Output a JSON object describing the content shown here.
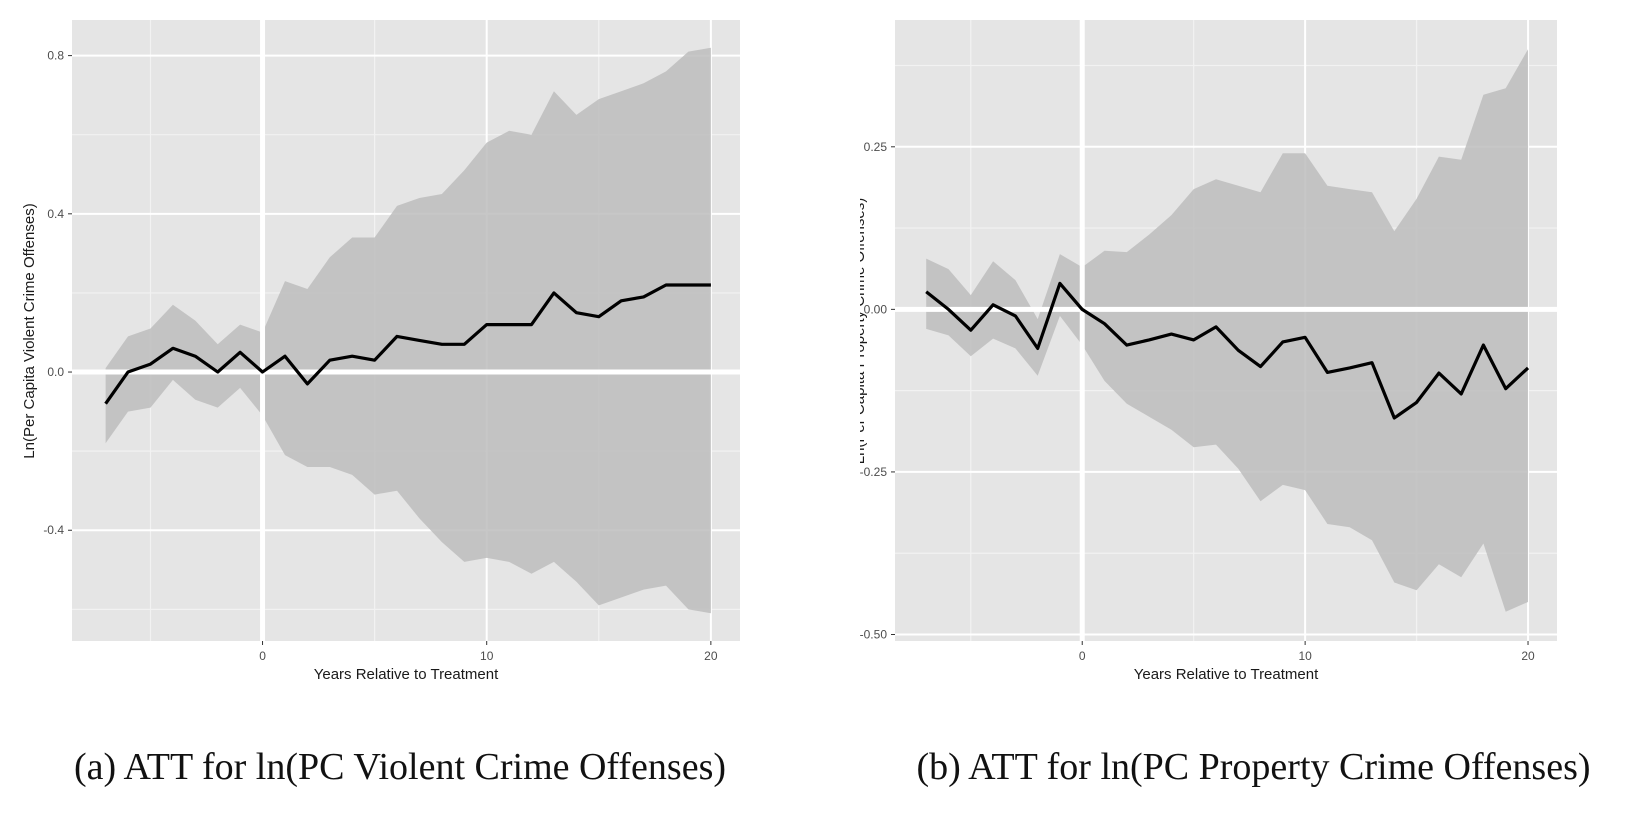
{
  "chart_data": [
    {
      "type": "line",
      "title": "",
      "caption": "(a) ATT for ln(PC Violent Crime Offenses)",
      "xlabel": "Years Relative to Treatment",
      "ylabel": "Ln(Per Capita Violent Crime Offenses)",
      "xlim": [
        -8.5,
        21.3
      ],
      "ylim": [
        -0.68,
        0.89
      ],
      "xticks": [
        0,
        10,
        20
      ],
      "xtick_labels": [
        "0",
        "10",
        "20"
      ],
      "yticks": [
        -0.4,
        0.0,
        0.4,
        0.8
      ],
      "ytick_labels": [
        "-0.4",
        "0.0",
        "0.4",
        "0.8"
      ],
      "reference_lines": {
        "x": 0,
        "y": 0
      },
      "grid": true,
      "x": [
        -7,
        -6,
        -5,
        -4,
        -3,
        -2,
        -1,
        0,
        1,
        2,
        3,
        4,
        5,
        6,
        7,
        8,
        9,
        10,
        11,
        12,
        13,
        14,
        15,
        16,
        17,
        18,
        19,
        20
      ],
      "series": [
        {
          "values": [
            -0.08,
            0.0,
            0.02,
            0.06,
            0.04,
            0.0,
            0.05,
            0.0,
            0.04,
            -0.03,
            0.03,
            0.04,
            0.03,
            0.09,
            0.08,
            0.07,
            0.07,
            0.12,
            0.12,
            0.12,
            0.2,
            0.15,
            0.14,
            0.18,
            0.19,
            0.22,
            0.22,
            0.22
          ]
        }
      ],
      "ribbon": {
        "upper": [
          0.01,
          0.09,
          0.11,
          0.17,
          0.13,
          0.07,
          0.12,
          0.1,
          0.23,
          0.21,
          0.29,
          0.34,
          0.34,
          0.42,
          0.44,
          0.45,
          0.51,
          0.58,
          0.61,
          0.6,
          0.71,
          0.65,
          0.69,
          0.71,
          0.73,
          0.76,
          0.81,
          0.82
        ],
        "lower": [
          -0.18,
          -0.1,
          -0.09,
          -0.02,
          -0.07,
          -0.09,
          -0.04,
          -0.11,
          -0.21,
          -0.24,
          -0.24,
          -0.26,
          -0.31,
          -0.3,
          -0.37,
          -0.43,
          -0.48,
          -0.47,
          -0.48,
          -0.51,
          -0.48,
          -0.53,
          -0.59,
          -0.57,
          -0.55,
          -0.54,
          -0.6,
          -0.61
        ]
      }
    },
    {
      "type": "line",
      "title": "",
      "caption": "(b) ATT for ln(PC Property Crime Offenses)",
      "xlabel": "Years Relative to Treatment",
      "ylabel": "Ln(Per Capita Property Crime Offenses)",
      "xlim": [
        -8.4,
        21.3
      ],
      "ylim": [
        -0.51,
        0.445
      ],
      "xticks": [
        0,
        10,
        20
      ],
      "xtick_labels": [
        "0",
        "10",
        "20"
      ],
      "yticks": [
        -0.5,
        -0.25,
        0.0,
        0.25
      ],
      "ytick_labels": [
        "-0.50",
        "-0.25",
        "0.00",
        "0.25"
      ],
      "reference_lines": {
        "x": 0,
        "y": 0
      },
      "grid": true,
      "x": [
        -7,
        -6,
        -5,
        -4,
        -3,
        -2,
        -1,
        0,
        1,
        2,
        3,
        4,
        5,
        6,
        7,
        8,
        9,
        10,
        11,
        12,
        13,
        14,
        15,
        16,
        17,
        18,
        19,
        20
      ],
      "series": [
        {
          "values": [
            0.027,
            0.0,
            -0.032,
            0.007,
            -0.01,
            -0.06,
            0.04,
            0.0,
            -0.022,
            -0.055,
            -0.047,
            -0.038,
            -0.047,
            -0.027,
            -0.063,
            -0.088,
            -0.05,
            -0.043,
            -0.097,
            -0.09,
            -0.082,
            -0.167,
            -0.143,
            -0.098,
            -0.13,
            -0.055,
            -0.122,
            -0.09
          ]
        }
      ],
      "ribbon": {
        "upper": [
          0.078,
          0.062,
          0.022,
          0.074,
          0.045,
          -0.015,
          0.085,
          0.065,
          0.09,
          0.088,
          0.115,
          0.145,
          0.185,
          0.2,
          0.19,
          0.18,
          0.24,
          0.24,
          0.19,
          0.185,
          0.18,
          0.12,
          0.17,
          0.235,
          0.23,
          0.33,
          0.34,
          0.4
        ],
        "lower": [
          -0.03,
          -0.04,
          -0.072,
          -0.045,
          -0.06,
          -0.102,
          -0.01,
          -0.055,
          -0.11,
          -0.145,
          -0.165,
          -0.185,
          -0.212,
          -0.208,
          -0.245,
          -0.295,
          -0.27,
          -0.278,
          -0.33,
          -0.335,
          -0.355,
          -0.42,
          -0.432,
          -0.392,
          -0.412,
          -0.36,
          -0.465,
          -0.45
        ]
      }
    }
  ]
}
